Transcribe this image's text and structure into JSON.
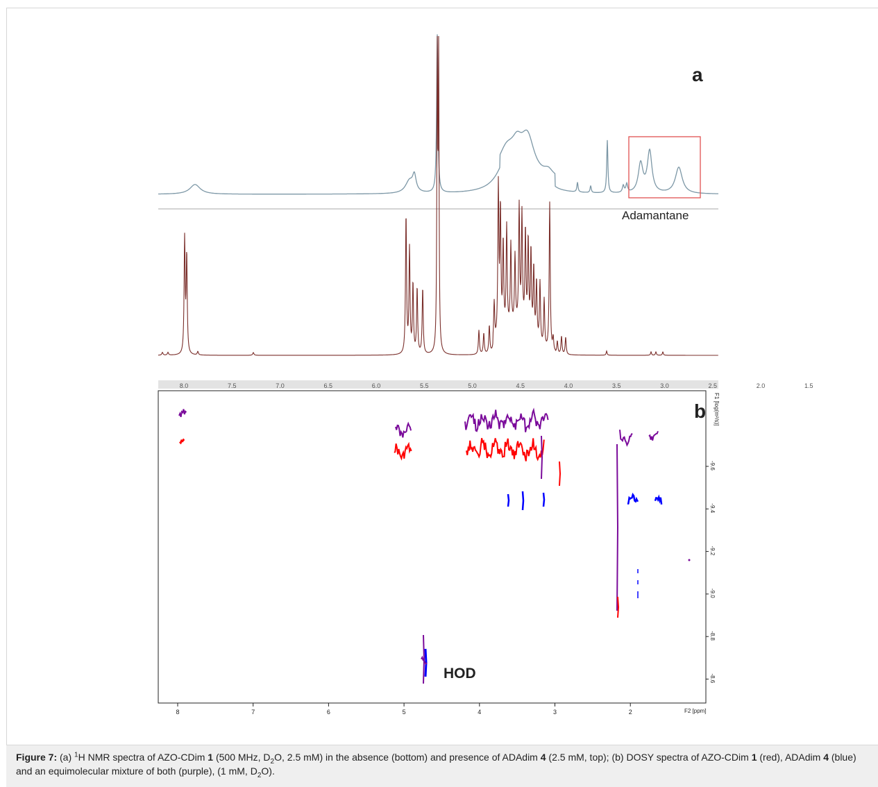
{
  "panel_a": {
    "label": "a",
    "annotation": "Adamantane",
    "x_ticks": [
      "8.0",
      "7.5",
      "7.0",
      "6.5",
      "6.0",
      "5.5",
      "5.0",
      "4.5",
      "4.0",
      "3.5",
      "3.0",
      "2.5",
      "2.0",
      "1.5"
    ],
    "spectra_colors": {
      "top": "#7c97a6",
      "bottom": "#7a2e2a"
    }
  },
  "panel_b": {
    "label": "b",
    "annotation": "HOD",
    "x_ticks": [
      "8",
      "7",
      "6",
      "5",
      "4",
      "3",
      "2"
    ],
    "x_axis_label": "F2 [ppm]",
    "y_axis_label": "F1 [log(m²/s)]",
    "y_ticks": [
      "-9.6",
      "-9.4",
      "-9.2",
      "-9.0",
      "-8.8",
      "-8.6"
    ],
    "colors": {
      "AZO-CDim 1": "#ff0000",
      "ADAdim 4": "#0000ff",
      "mixture": "#7a0a9a"
    }
  },
  "caption": {
    "figure_label": "Figure 7:",
    "parts": [
      {
        "t": " (a) "
      },
      {
        "t": "1",
        "sup": true
      },
      {
        "t": "H NMR spectra of AZO-CDim "
      },
      {
        "t": "1",
        "b": true
      },
      {
        "t": " (500 MHz, D"
      },
      {
        "t": "2",
        "sub": true
      },
      {
        "t": "O, 2.5 mM) in the absence (bottom) and presence of ADAdim "
      },
      {
        "t": "4",
        "b": true
      },
      {
        "t": " (2.5 mM, top); (b) DOSY spectra of AZO-CDim "
      },
      {
        "t": "1",
        "b": true
      },
      {
        "t": " (red), ADAdim "
      },
      {
        "t": "4",
        "b": true
      },
      {
        "t": " (blue) and an equimolecular mixture of both (purple), (1 mM, D"
      },
      {
        "t": "2",
        "sub": true
      },
      {
        "t": "O)."
      }
    ]
  }
}
